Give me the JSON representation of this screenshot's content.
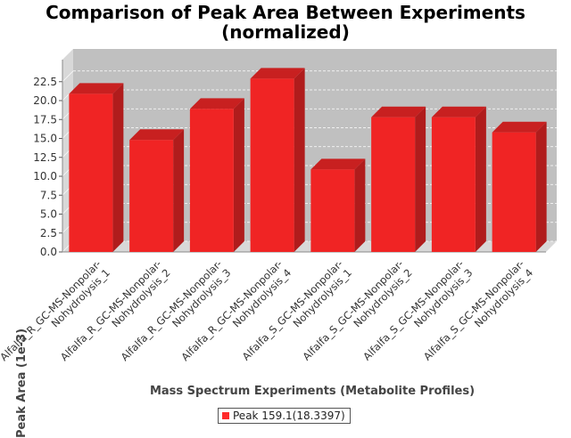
{
  "chart_data": {
    "type": "bar",
    "title": "Comparison of Peak Area Between Experiments",
    "subtitle": "(normalized)",
    "xlabel": "Mass Spectrum Experiments (Metabolite Profiles)",
    "ylabel": "Peak Area (1e-3)",
    "ylim": [
      0,
      24
    ],
    "yticks": [
      "0.0",
      "2.5",
      "5.0",
      "7.5",
      "10.0",
      "12.5",
      "15.0",
      "17.5",
      "20.0",
      "22.5"
    ],
    "categories": [
      "Alfalfa_R_GC-MS-Nonpolar-Nohydrolysis_1",
      "Alfalfa_R_GC-MS-Nonpolar-Nohydrolysis_2",
      "Alfalfa_R_GC-MS-Nonpolar-Nohydrolysis_3",
      "Alfalfa_R_GC-MS-Nonpolar-Nohydrolysis_4",
      "Alfalfa_S_GC-MS-Nonpolar-Nohydrolysis_1",
      "Alfalfa_S_GC-MS-Nonpolar-Nohydrolysis_2",
      "Alfalfa_S_GC-MS-Nonpolar-Nohydrolysis_3",
      "Alfalfa_S_GC-MS-Nonpolar-Nohydrolysis_4"
    ],
    "series": [
      {
        "name": "Peak 159.1(18.3397)",
        "values": [
          20.9,
          14.8,
          18.9,
          22.9,
          10.9,
          17.8,
          17.8,
          15.8
        ]
      }
    ],
    "legend": "bottom",
    "grid": true,
    "colors": {
      "bar_front": "#f02424",
      "bar_side": "#b01c1c",
      "bar_top": "#c82020",
      "plot_bg": "#c0c0c0"
    }
  }
}
